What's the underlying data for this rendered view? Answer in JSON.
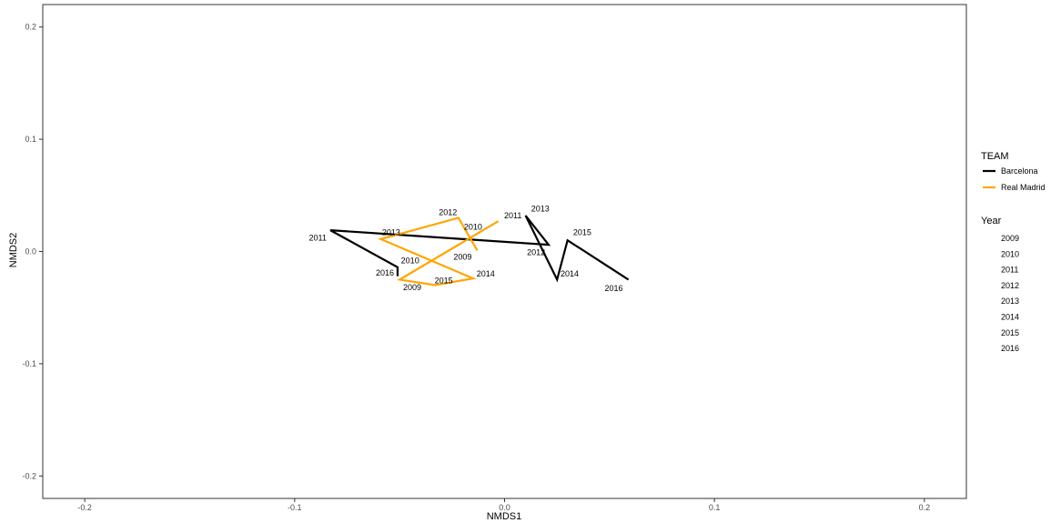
{
  "chart_data": {
    "type": "line",
    "title": "",
    "xlabel": "NMDS1",
    "ylabel": "NMDS2",
    "xlim": [
      -0.22,
      0.22
    ],
    "ylim": [
      -0.22,
      0.22
    ],
    "xticks": [
      -0.2,
      -0.1,
      0.0,
      0.1,
      0.2
    ],
    "xtick_labels": [
      "-0.2",
      "-0.1",
      "0.0",
      "0.1",
      "0.2"
    ],
    "yticks": [
      -0.2,
      -0.1,
      0.0,
      0.1,
      0.2
    ],
    "ytick_labels": [
      "-0.2",
      "-0.1",
      "0.0",
      "0.1",
      "0.2"
    ],
    "grid": false,
    "legend_position": "right",
    "series": [
      {
        "name": "Barcelona",
        "color": "#000000",
        "points": [
          {
            "year": "2016",
            "x": -0.051,
            "y": -0.022
          },
          {
            "year": "2010",
            "x": -0.051,
            "y": -0.014
          },
          {
            "year": "2011",
            "x": -0.083,
            "y": 0.019
          },
          {
            "year": "2012",
            "x": 0.021,
            "y": 0.006
          },
          {
            "year": "2013",
            "x": 0.01,
            "y": 0.032
          },
          {
            "year": "2014",
            "x": 0.025,
            "y": -0.025
          },
          {
            "year": "2015",
            "x": 0.03,
            "y": 0.01
          },
          {
            "year": "2016",
            "x": 0.059,
            "y": -0.025
          }
        ]
      },
      {
        "name": "Real Madrid",
        "color": "#FFA500",
        "points": [
          {
            "year": "2009",
            "x": -0.013,
            "y": 0.001
          },
          {
            "year": "2012",
            "x": -0.022,
            "y": 0.03
          },
          {
            "year": "2013",
            "x": -0.059,
            "y": 0.011
          },
          {
            "year": "2014",
            "x": -0.015,
            "y": -0.024
          },
          {
            "year": "2015",
            "x": -0.033,
            "y": -0.03
          },
          {
            "year": "2009",
            "x": -0.05,
            "y": -0.025
          },
          {
            "year": "2011",
            "x": -0.003,
            "y": 0.027
          }
        ]
      }
    ],
    "point_labels": [
      {
        "text": "2011",
        "x": -0.089,
        "y": 0.012
      },
      {
        "text": "2013",
        "x": -0.054,
        "y": 0.017
      },
      {
        "text": "2010",
        "x": -0.045,
        "y": -0.008
      },
      {
        "text": "2016",
        "x": -0.057,
        "y": -0.019
      },
      {
        "text": "2009",
        "x": -0.044,
        "y": -0.032
      },
      {
        "text": "2015",
        "x": -0.029,
        "y": -0.026
      },
      {
        "text": "2014",
        "x": -0.009,
        "y": -0.02
      },
      {
        "text": "2012",
        "x": -0.027,
        "y": 0.035
      },
      {
        "text": "2010",
        "x": -0.015,
        "y": 0.022
      },
      {
        "text": "2009",
        "x": -0.02,
        "y": -0.005
      },
      {
        "text": "2011",
        "x": 0.004,
        "y": 0.032
      },
      {
        "text": "2013",
        "x": 0.017,
        "y": 0.038
      },
      {
        "text": "2012",
        "x": 0.015,
        "y": -0.001
      },
      {
        "text": "2014",
        "x": 0.031,
        "y": -0.02
      },
      {
        "text": "2015",
        "x": 0.037,
        "y": 0.017
      },
      {
        "text": "2016",
        "x": 0.052,
        "y": -0.033
      }
    ]
  },
  "legend": {
    "team_title": "TEAM",
    "team_items": [
      {
        "label": "Barcelona",
        "color": "#000000"
      },
      {
        "label": "Real Madrid",
        "color": "#FFA500"
      }
    ],
    "year_title": "Year",
    "year_items": [
      "2009",
      "2010",
      "2011",
      "2012",
      "2013",
      "2014",
      "2015",
      "2016"
    ]
  }
}
